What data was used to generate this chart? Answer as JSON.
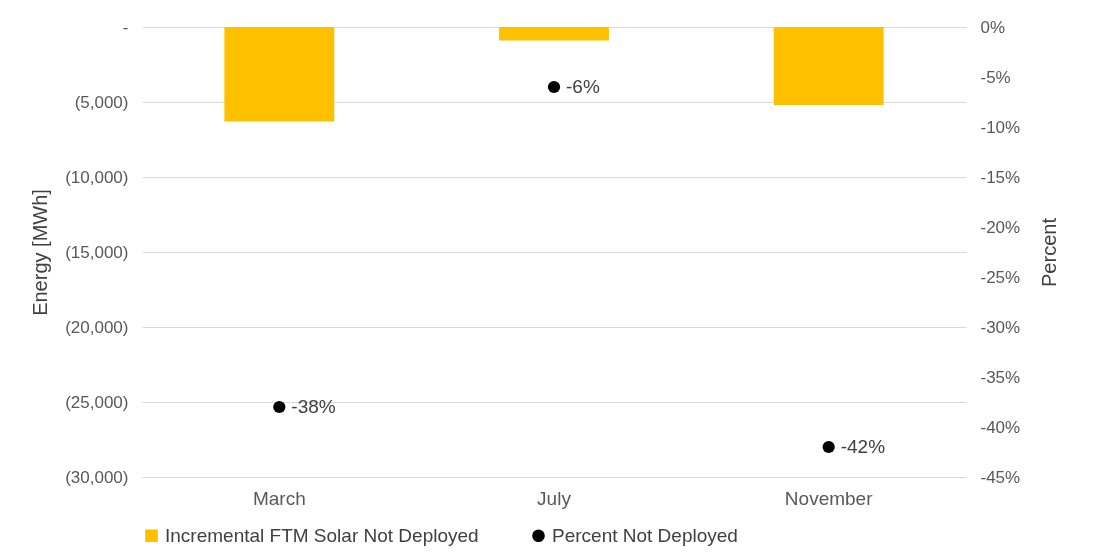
{
  "chart_data": {
    "type": "bar",
    "ylabel": "Energy [MWh]",
    "y2label": "Percent",
    "categories": [
      "March",
      "July",
      "November"
    ],
    "series": [
      {
        "name": "Incremental FTM Solar Not Deployed",
        "color": "#ffc000",
        "values": [
          -6300,
          -900,
          -5200
        ]
      },
      {
        "name": "Percent Not Deployed",
        "type": "scatter",
        "axis": "y2",
        "color": "#000000",
        "marker": "circle",
        "values": [
          -38,
          -6,
          -42
        ],
        "value_labels": [
          "-38%",
          "-6%",
          "-42%"
        ]
      }
    ],
    "ylim": [
      -30000,
      0
    ],
    "yticks": [
      {
        "value": 0,
        "label": "-"
      },
      {
        "value": -5000,
        "label": "(5,000)"
      },
      {
        "value": -10000,
        "label": "(10,000)"
      },
      {
        "value": -15000,
        "label": "(15,000)"
      },
      {
        "value": -20000,
        "label": "(20,000)"
      },
      {
        "value": -25000,
        "label": "(25,000)"
      },
      {
        "value": -30000,
        "label": "(30,000)"
      }
    ],
    "y2lim": [
      -45,
      0
    ],
    "y2ticks": [
      {
        "value": 0,
        "label": "0%"
      },
      {
        "value": -5,
        "label": "-5%"
      },
      {
        "value": -10,
        "label": "-10%"
      },
      {
        "value": -15,
        "label": "-15%"
      },
      {
        "value": -20,
        "label": "-20%"
      },
      {
        "value": -25,
        "label": "-25%"
      },
      {
        "value": -30,
        "label": "-30%"
      },
      {
        "value": -35,
        "label": "-35%"
      },
      {
        "value": -40,
        "label": "-40%"
      },
      {
        "value": -45,
        "label": "-45%"
      }
    ],
    "grid": "y",
    "legend": "bottom"
  }
}
